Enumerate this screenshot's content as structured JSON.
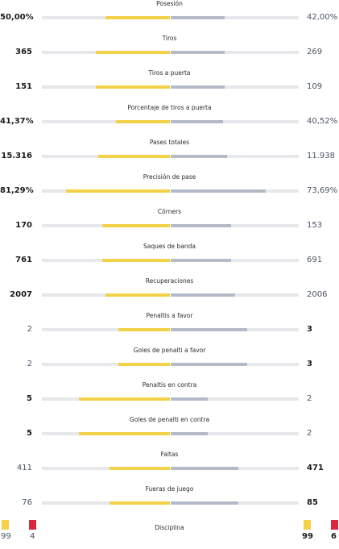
{
  "colors": {
    "home_bar": "#f3d149",
    "away_bar": "#b3bcc6",
    "track": "#e6e8ec",
    "red_card": "#d8283f"
  },
  "stats": [
    {
      "label": "Posesión",
      "home": "50,00%",
      "away": "42,00%",
      "home_fill": 0.5,
      "away_fill": 0.42,
      "emphasis": "home"
    },
    {
      "label": "Tiros",
      "home": "365",
      "away": "269",
      "home_fill": 0.58,
      "away_fill": 0.42,
      "emphasis": "home"
    },
    {
      "label": "Tiros a puerta",
      "home": "151",
      "away": "109",
      "home_fill": 0.58,
      "away_fill": 0.42,
      "emphasis": "home"
    },
    {
      "label": "Porcentaje de tiros a puerta",
      "home": "41,37%",
      "away": "40,52%",
      "home_fill": 0.42,
      "away_fill": 0.41,
      "emphasis": "home"
    },
    {
      "label": "Pases totales",
      "home": "15.316",
      "away": "11.938",
      "home_fill": 0.56,
      "away_fill": 0.44,
      "emphasis": "home"
    },
    {
      "label": "Precisión de pase",
      "home": "81,29%",
      "away": "73,69%",
      "home_fill": 0.81,
      "away_fill": 0.74,
      "emphasis": "home"
    },
    {
      "label": "Córners",
      "home": "170",
      "away": "153",
      "home_fill": 0.53,
      "away_fill": 0.47,
      "emphasis": "home"
    },
    {
      "label": "Saques de banda",
      "home": "761",
      "away": "691",
      "home_fill": 0.53,
      "away_fill": 0.47,
      "emphasis": "home"
    },
    {
      "label": "Recuperaciones",
      "home": "2007",
      "away": "2006",
      "home_fill": 0.5,
      "away_fill": 0.5,
      "emphasis": "home"
    },
    {
      "label": "Penaltis a favor",
      "home": "2",
      "away": "3",
      "home_fill": 0.4,
      "away_fill": 0.6,
      "emphasis": "away"
    },
    {
      "label": "Goles de penalti a favor",
      "home": "2",
      "away": "3",
      "home_fill": 0.4,
      "away_fill": 0.6,
      "emphasis": "away"
    },
    {
      "label": "Penaltis en contra",
      "home": "5",
      "away": "2",
      "home_fill": 0.71,
      "away_fill": 0.29,
      "emphasis": "home"
    },
    {
      "label": "Goles de penalti en contra",
      "home": "5",
      "away": "2",
      "home_fill": 0.71,
      "away_fill": 0.29,
      "emphasis": "home"
    },
    {
      "label": "Faltas",
      "home": "411",
      "away": "471",
      "home_fill": 0.47,
      "away_fill": 0.53,
      "emphasis": "away"
    },
    {
      "label": "Fueras de juego",
      "home": "76",
      "away": "85",
      "home_fill": 0.47,
      "away_fill": 0.53,
      "emphasis": "away"
    }
  ],
  "discipline": {
    "label": "Disciplina",
    "home_yellow": "99",
    "home_red": "4",
    "away_yellow": "99",
    "away_red": "6"
  }
}
